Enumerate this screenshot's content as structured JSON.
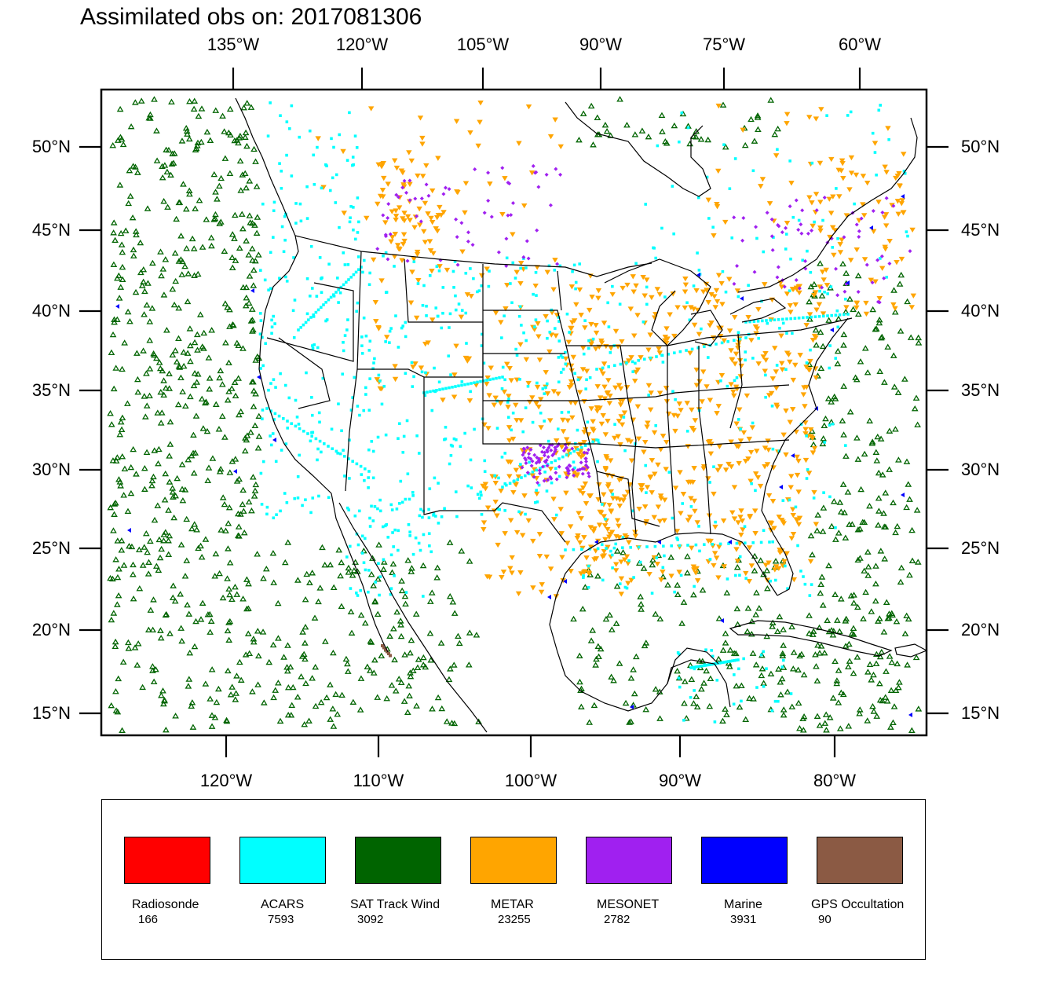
{
  "title": "Assimilated obs on: 2017081306",
  "map": {
    "top_lon_labels": [
      "135°W",
      "120°W",
      "105°W",
      "90°W",
      "75°W",
      "60°W"
    ],
    "bottom_lon_labels": [
      "120°W",
      "110°W",
      "100°W",
      "90°W",
      "80°W"
    ],
    "lat_labels": [
      "50°N",
      "45°N",
      "40°N",
      "35°N",
      "30°N",
      "25°N",
      "20°N",
      "15°N"
    ]
  },
  "colors": {
    "radiosonde": "#ff0000",
    "acars": "#00ffff",
    "sat_track_wind": "#006400",
    "metar": "#ffa500",
    "mesonet": "#a020f0",
    "marine": "#0000ff",
    "gps": "#8b5a44"
  },
  "legend": [
    {
      "name": "Radiosonde",
      "count": "166",
      "color": "#ff0000"
    },
    {
      "name": "ACARS",
      "count": "7593",
      "color": "#00ffff"
    },
    {
      "name": "SAT Track Wind",
      "count": "3092",
      "color": "#006400"
    },
    {
      "name": "METAR",
      "count": "23255",
      "color": "#ffa500"
    },
    {
      "name": "MESONET",
      "count": "2782",
      "color": "#a020f0"
    },
    {
      "name": "Marine",
      "count": "3931",
      "color": "#0000ff"
    },
    {
      "name": "GPS Occultation",
      "count": "90",
      "color": "#8b5a44"
    }
  ]
}
